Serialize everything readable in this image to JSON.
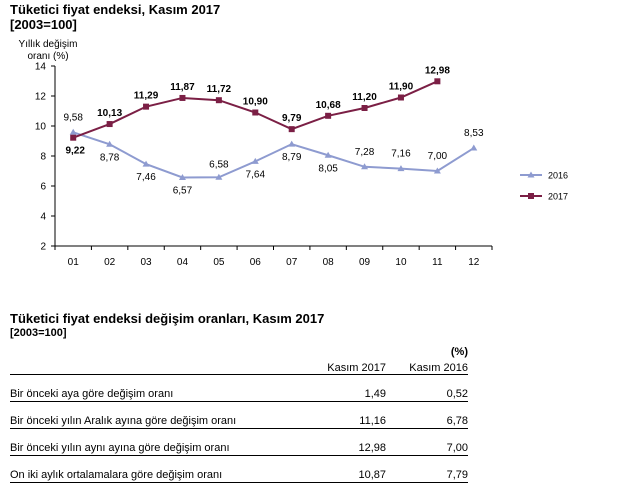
{
  "chart_title": "Tüketici fiyat endeksi, Kasım 2017",
  "chart_subtitle": "[2003=100]",
  "chart_data": {
    "type": "line",
    "title": "Tüketici fiyat endeksi, Kasım 2017",
    "ylabel": "Yıllık değişim oranı (%)",
    "xlabel": "",
    "categories": [
      "01",
      "02",
      "03",
      "04",
      "05",
      "06",
      "07",
      "08",
      "09",
      "10",
      "11",
      "12"
    ],
    "ylim": [
      2,
      14
    ],
    "yticks": [
      "2",
      "4",
      "6",
      "8",
      "10",
      "12",
      "14"
    ],
    "grid": false,
    "legend_position": "right",
    "series": [
      {
        "name": "2016",
        "color": "#8e9bd0",
        "marker": "triangle",
        "values": [
          9.58,
          8.78,
          7.46,
          6.57,
          6.58,
          7.64,
          8.79,
          8.05,
          7.28,
          7.16,
          7.0,
          8.53
        ],
        "labels": [
          "9,58",
          "8,78",
          "7,46",
          "6,57",
          "6,58",
          "7,64",
          "8,79",
          "8,05",
          "7,28",
          "7,16",
          "7,00",
          "8,53"
        ]
      },
      {
        "name": "2017",
        "color": "#7b1f45",
        "marker": "square",
        "values": [
          9.22,
          10.13,
          11.29,
          11.87,
          11.72,
          10.9,
          9.79,
          10.68,
          11.2,
          11.9,
          12.98,
          null
        ],
        "labels": [
          "9,22",
          "10,13",
          "11,29",
          "11,87",
          "11,72",
          "10,90",
          "9,79",
          "10,68",
          "11,20",
          "11,90",
          "12,98",
          ""
        ]
      }
    ]
  },
  "table": {
    "title": "Tüketici fiyat endeksi değişim oranları, Kasım 2017",
    "subtitle": "[2003=100]",
    "unit": "(%)",
    "columns": [
      "Kasım 2017",
      "Kasım 2016"
    ],
    "rows": [
      {
        "label": "Bir önceki aya göre değişim oranı",
        "v2017": "1,49",
        "v2016": "0,52"
      },
      {
        "label": "Bir önceki yılın Aralık ayına göre değişim oranı",
        "v2017": "11,16",
        "v2016": "6,78"
      },
      {
        "label": "Bir önceki yılın aynı ayına göre değişim oranı",
        "v2017": "12,98",
        "v2016": "7,00"
      },
      {
        "label": "On iki aylık ortalamalara göre değişim oranı",
        "v2017": "10,87",
        "v2016": "7,79"
      }
    ]
  }
}
